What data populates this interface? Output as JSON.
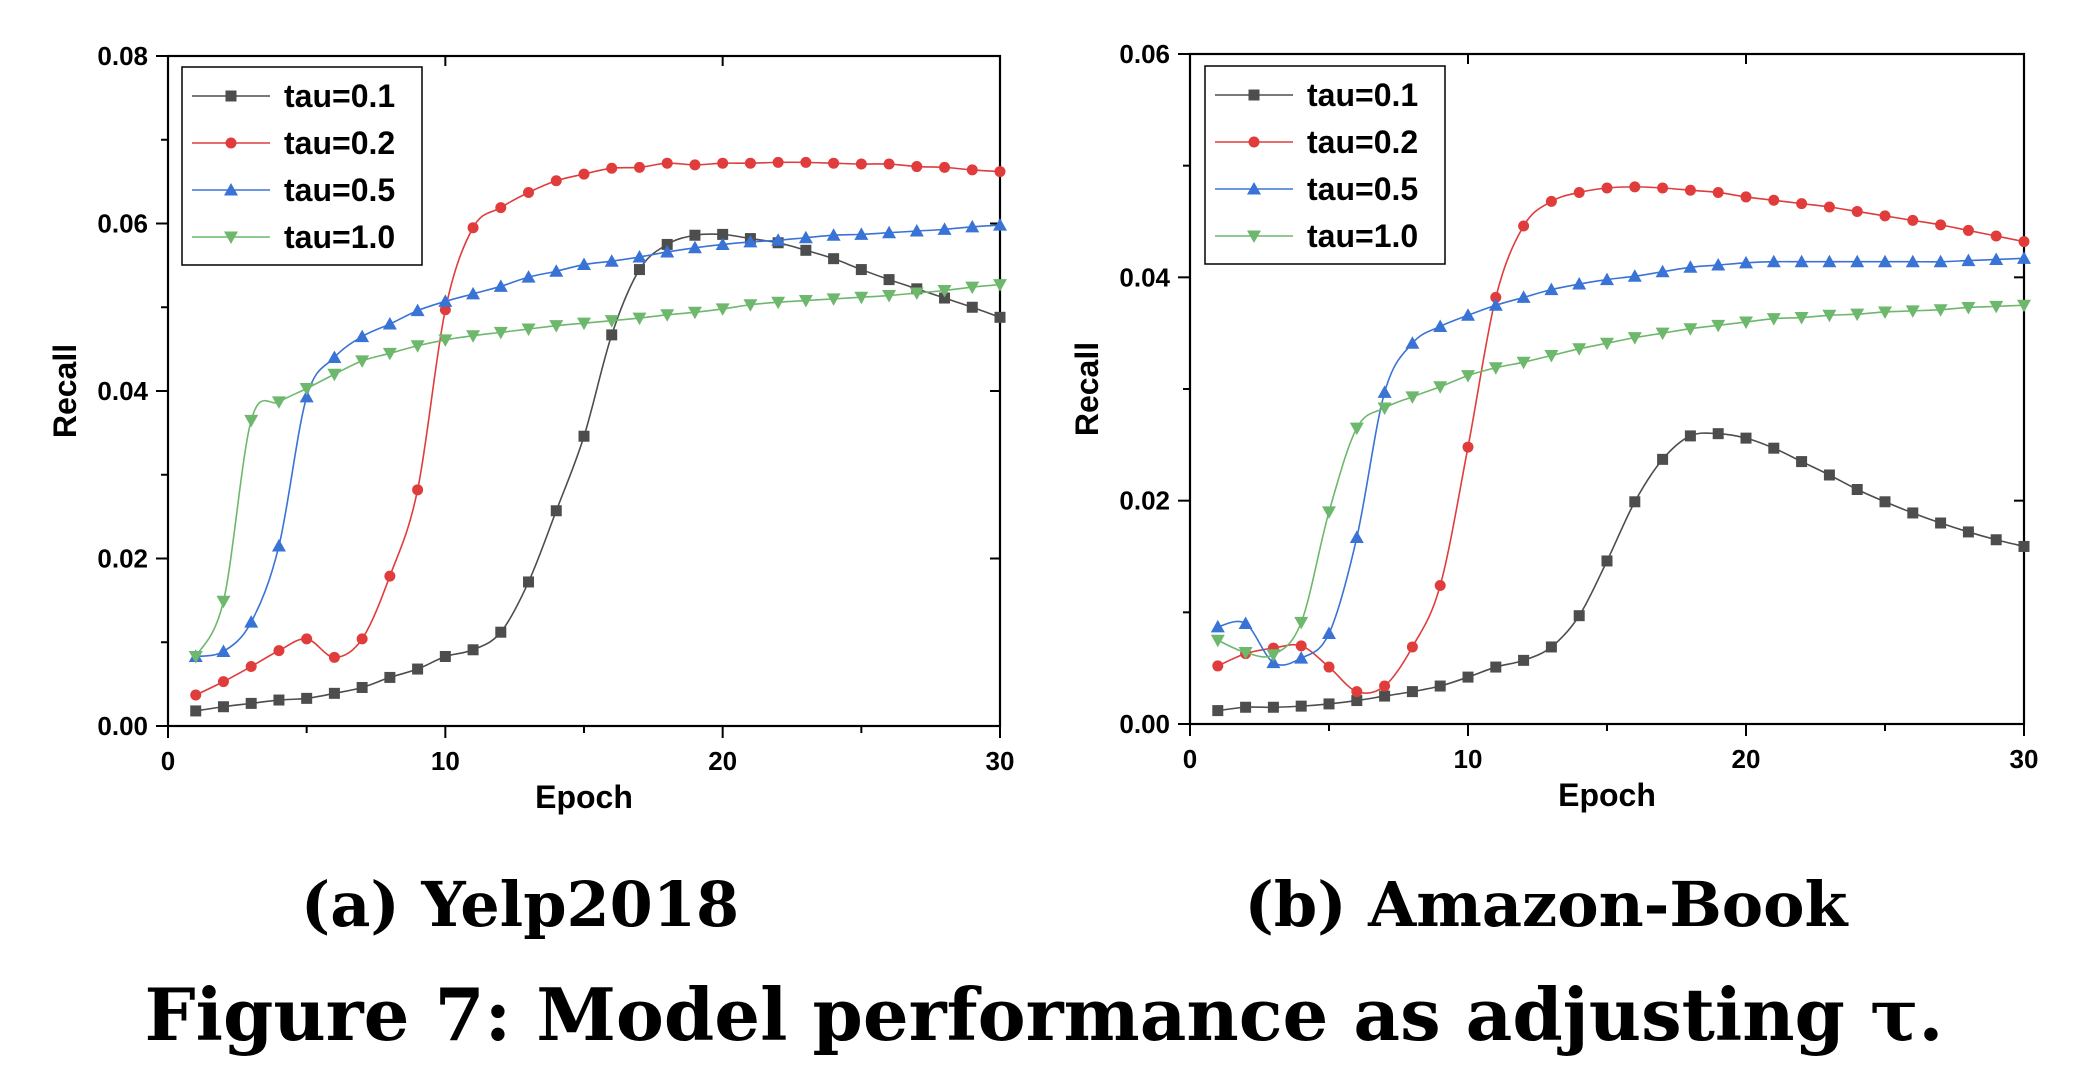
{
  "figure": {
    "caption": "Figure 7: Model performance as adjusting τ."
  },
  "colors": {
    "tau=0.1": "#4d4d4d",
    "tau=0.2": "#e03c3c",
    "tau=0.5": "#3a73d6",
    "tau=1.0": "#6db86d"
  },
  "chart_data": [
    {
      "type": "line",
      "subcaption": "(a) Yelp2018",
      "xlabel": "Epoch",
      "ylabel": "Recall",
      "xlim": [
        0,
        30
      ],
      "ylim": [
        0,
        0.08
      ],
      "xticks": [
        0,
        10,
        20,
        30
      ],
      "yticks": [
        0.0,
        0.02,
        0.04,
        0.06,
        0.08
      ],
      "ytick_labels": [
        "0.00",
        "0.02",
        "0.04",
        "0.06",
        "0.08"
      ],
      "legend": "top-left",
      "grid": false,
      "x": [
        1,
        2,
        3,
        4,
        5,
        6,
        7,
        8,
        9,
        10,
        11,
        12,
        13,
        14,
        15,
        16,
        17,
        18,
        19,
        20,
        21,
        22,
        23,
        24,
        25,
        26,
        27,
        28,
        29,
        30
      ],
      "series": [
        {
          "name": "tau=0.1",
          "marker": "square",
          "values": [
            0.0018,
            0.0023,
            0.0027,
            0.0031,
            0.0033,
            0.0039,
            0.0046,
            0.0058,
            0.0068,
            0.0083,
            0.0091,
            0.0112,
            0.0172,
            0.0257,
            0.0346,
            0.0467,
            0.0545,
            0.0575,
            0.0586,
            0.0587,
            0.0582,
            0.0577,
            0.0568,
            0.0558,
            0.0545,
            0.0533,
            0.0522,
            0.0511,
            0.05,
            0.0488
          ]
        },
        {
          "name": "tau=0.2",
          "marker": "circle",
          "values": [
            0.0037,
            0.0053,
            0.0071,
            0.009,
            0.0104,
            0.0082,
            0.0104,
            0.0179,
            0.0282,
            0.0497,
            0.0595,
            0.0619,
            0.0637,
            0.0651,
            0.0659,
            0.0666,
            0.0667,
            0.0672,
            0.067,
            0.0672,
            0.0672,
            0.0673,
            0.0673,
            0.0672,
            0.0671,
            0.0671,
            0.0668,
            0.0667,
            0.0664,
            0.0662
          ]
        },
        {
          "name": "tau=0.5",
          "marker": "triangle-up",
          "values": [
            0.0083,
            0.0089,
            0.0124,
            0.0215,
            0.0393,
            0.044,
            0.0465,
            0.048,
            0.0496,
            0.0507,
            0.0516,
            0.0525,
            0.0536,
            0.0543,
            0.0551,
            0.0555,
            0.056,
            0.0566,
            0.0571,
            0.0575,
            0.0578,
            0.058,
            0.0583,
            0.0586,
            0.0587,
            0.0589,
            0.0591,
            0.0593,
            0.0596,
            0.0598
          ]
        },
        {
          "name": "tau=1.0",
          "marker": "triangle-down",
          "values": [
            0.0083,
            0.0149,
            0.0365,
            0.0387,
            0.0403,
            0.042,
            0.0436,
            0.0445,
            0.0454,
            0.0461,
            0.0466,
            0.047,
            0.0474,
            0.0478,
            0.0481,
            0.0484,
            0.0487,
            0.0491,
            0.0494,
            0.0498,
            0.0503,
            0.0506,
            0.0508,
            0.051,
            0.0512,
            0.0514,
            0.0517,
            0.052,
            0.0524,
            0.0527
          ]
        }
      ]
    },
    {
      "type": "line",
      "subcaption": "(b) Amazon-Book",
      "xlabel": "Epoch",
      "ylabel": "Recall",
      "xlim": [
        0,
        30
      ],
      "ylim": [
        0,
        0.06
      ],
      "xticks": [
        0,
        10,
        20,
        30
      ],
      "yticks": [
        0.0,
        0.02,
        0.04,
        0.06
      ],
      "ytick_labels": [
        "0.00",
        "0.02",
        "0.04",
        "0.06"
      ],
      "legend": "top-left",
      "grid": false,
      "x": [
        1,
        2,
        3,
        4,
        5,
        6,
        7,
        8,
        9,
        10,
        11,
        12,
        13,
        14,
        15,
        16,
        17,
        18,
        19,
        20,
        21,
        22,
        23,
        24,
        25,
        26,
        27,
        28,
        29,
        30
      ],
      "series": [
        {
          "name": "tau=0.1",
          "marker": "square",
          "values": [
            0.0012,
            0.0015,
            0.0015,
            0.0016,
            0.0018,
            0.0021,
            0.0025,
            0.0029,
            0.0034,
            0.0042,
            0.0051,
            0.0057,
            0.0069,
            0.0097,
            0.0146,
            0.0199,
            0.0237,
            0.0258,
            0.026,
            0.0256,
            0.0247,
            0.0235,
            0.0223,
            0.021,
            0.0199,
            0.0189,
            0.018,
            0.0172,
            0.0165,
            0.0159
          ]
        },
        {
          "name": "tau=0.2",
          "marker": "circle",
          "values": [
            0.0052,
            0.0063,
            0.0068,
            0.007,
            0.0051,
            0.0029,
            0.0034,
            0.0069,
            0.0124,
            0.0248,
            0.0382,
            0.0446,
            0.0468,
            0.0476,
            0.048,
            0.0481,
            0.048,
            0.0478,
            0.0476,
            0.0472,
            0.0469,
            0.0466,
            0.0463,
            0.0459,
            0.0455,
            0.0451,
            0.0447,
            0.0442,
            0.0437,
            0.0432
          ]
        },
        {
          "name": "tau=0.5",
          "marker": "triangle-up",
          "values": [
            0.0087,
            0.009,
            0.0055,
            0.0059,
            0.0081,
            0.0167,
            0.0297,
            0.0341,
            0.0356,
            0.0366,
            0.0375,
            0.0382,
            0.0389,
            0.0394,
            0.0398,
            0.0401,
            0.0405,
            0.0409,
            0.0411,
            0.0413,
            0.0414,
            0.0414,
            0.0414,
            0.0414,
            0.0414,
            0.0414,
            0.0414,
            0.0415,
            0.0416,
            0.0417
          ]
        },
        {
          "name": "tau=1.0",
          "marker": "triangle-down",
          "values": [
            0.0075,
            0.0064,
            0.0062,
            0.0091,
            0.019,
            0.0265,
            0.0283,
            0.0293,
            0.0302,
            0.0312,
            0.0319,
            0.0324,
            0.033,
            0.0336,
            0.0341,
            0.0346,
            0.035,
            0.0354,
            0.0357,
            0.036,
            0.0363,
            0.0364,
            0.0366,
            0.0367,
            0.0369,
            0.037,
            0.0371,
            0.0373,
            0.0374,
            0.0375
          ]
        }
      ]
    }
  ]
}
